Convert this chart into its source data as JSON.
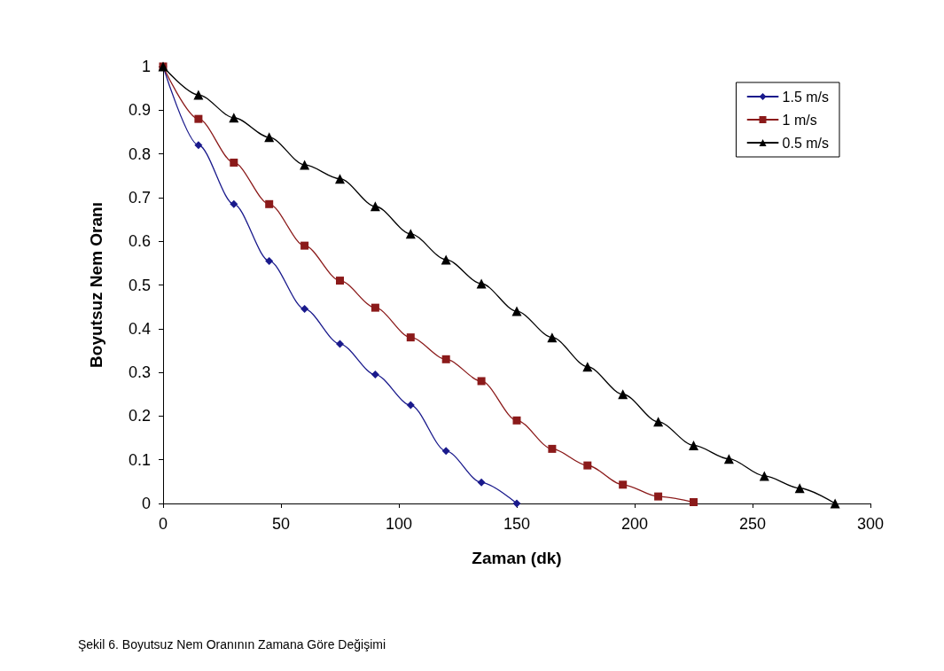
{
  "chart_data": {
    "type": "line",
    "xlabel": "Zaman (dk)",
    "ylabel": "Boyutsuz Nem Oranı",
    "annotations": [
      "Şekil 6. Boyutsuz Nem Oranının Zamana Göre Değişimi"
    ],
    "xlim": [
      0,
      300
    ],
    "xticks": [
      0,
      50,
      100,
      150,
      200,
      250,
      300
    ],
    "ylim": [
      0,
      1
    ],
    "yticks": [
      0,
      0.1,
      0.2,
      0.3,
      0.4,
      0.5,
      0.6,
      0.7,
      0.8,
      0.9,
      1
    ],
    "grid": false,
    "legend": "top right",
    "line_style": "solid",
    "series": [
      {
        "name": "1.5 m/s",
        "color": "#1a1a8c",
        "marker": "diamond",
        "x": [
          0,
          15,
          30,
          45,
          60,
          75,
          90,
          105,
          120,
          135,
          150
        ],
        "values": [
          1,
          0.82,
          0.685,
          0.555,
          0.445,
          0.365,
          0.295,
          0.225,
          0.12,
          0.048,
          0
        ]
      },
      {
        "name": "1 m/s",
        "color": "#8b1a1a",
        "marker": "square",
        "x": [
          0,
          15,
          30,
          45,
          60,
          75,
          90,
          105,
          120,
          135,
          150,
          165,
          180,
          195,
          210,
          225
        ],
        "values": [
          1,
          0.88,
          0.78,
          0.685,
          0.59,
          0.51,
          0.448,
          0.38,
          0.33,
          0.28,
          0.19,
          0.125,
          0.087,
          0.043,
          0.016,
          0.003
        ]
      },
      {
        "name": "0.5 m/s",
        "color": "#000000",
        "marker": "triangle",
        "x": [
          0,
          15,
          30,
          45,
          60,
          75,
          90,
          105,
          120,
          135,
          150,
          165,
          180,
          195,
          210,
          225,
          240,
          255,
          270,
          285
        ],
        "values": [
          1,
          0.935,
          0.883,
          0.838,
          0.775,
          0.743,
          0.68,
          0.617,
          0.558,
          0.503,
          0.44,
          0.38,
          0.313,
          0.25,
          0.187,
          0.133,
          0.102,
          0.063,
          0.035,
          0
        ]
      }
    ]
  }
}
